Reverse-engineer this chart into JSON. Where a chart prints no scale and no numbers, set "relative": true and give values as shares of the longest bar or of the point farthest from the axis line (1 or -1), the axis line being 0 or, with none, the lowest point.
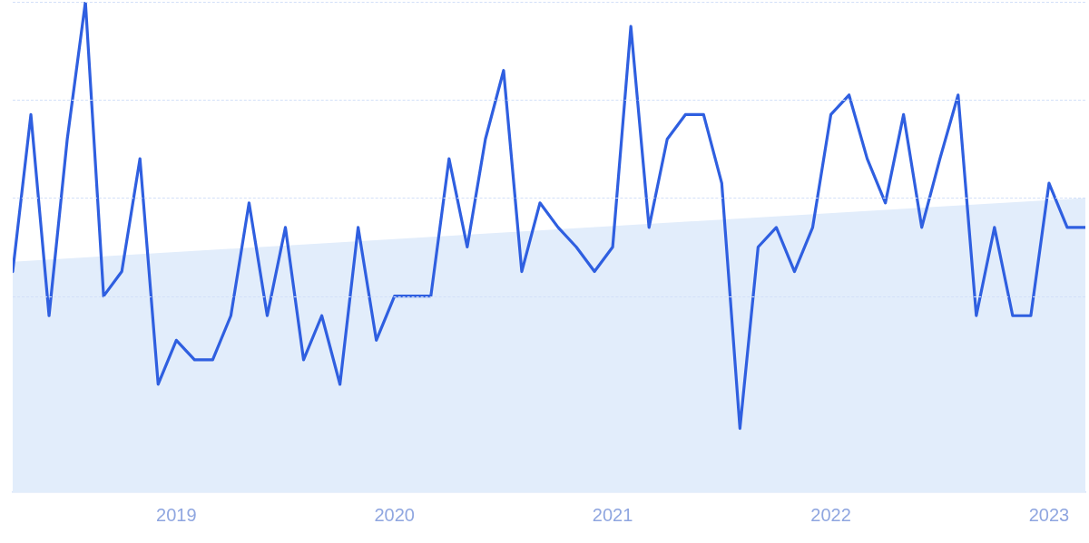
{
  "chart_data": {
    "type": "line",
    "relative": true,
    "legend": false,
    "marker": "none",
    "line_style": "solid",
    "x": [
      "2018-04",
      "2018-05",
      "2018-06",
      "2018-07",
      "2018-08",
      "2018-09",
      "2018-10",
      "2018-11",
      "2018-12",
      "2019-01",
      "2019-02",
      "2019-03",
      "2019-04",
      "2019-05",
      "2019-06",
      "2019-07",
      "2019-08",
      "2019-09",
      "2019-10",
      "2019-11",
      "2019-12",
      "2020-01",
      "2020-02",
      "2020-03",
      "2020-04",
      "2020-05",
      "2020-06",
      "2020-07",
      "2020-08",
      "2020-09",
      "2020-10",
      "2020-11",
      "2020-12",
      "2021-01",
      "2021-02",
      "2021-03",
      "2021-04",
      "2021-05",
      "2021-06",
      "2021-07",
      "2021-08",
      "2021-09",
      "2021-10",
      "2021-11",
      "2021-12",
      "2022-01",
      "2022-02",
      "2022-03",
      "2022-04",
      "2022-05",
      "2022-06",
      "2022-07",
      "2022-08",
      "2022-09",
      "2022-10",
      "2022-11",
      "2022-12",
      "2023-01",
      "2023-02",
      "2023-03"
    ],
    "xlim": [
      "2018-04",
      "2023-03"
    ],
    "xticks": [
      {
        "value": "2019-01",
        "label": "2019"
      },
      {
        "value": "2020-01",
        "label": "2020"
      },
      {
        "value": "2021-01",
        "label": "2021"
      },
      {
        "value": "2022-01",
        "label": "2022"
      },
      {
        "value": "2023-01",
        "label": "2023"
      }
    ],
    "series": [
      {
        "type": "area",
        "color": "#e2edfb",
        "x": [
          "2018-04",
          "2023-03"
        ],
        "values": [
          0.47,
          0.6
        ]
      },
      {
        "type": "line",
        "color": "#2f5fe0",
        "values": [
          0.45,
          0.77,
          0.36,
          0.72,
          1,
          0.4,
          0.45,
          0.68,
          0.22,
          0.31,
          0.27,
          0.27,
          0.36,
          0.59,
          0.36,
          0.54,
          0.27,
          0.36,
          0.22,
          0.54,
          0.31,
          0.4,
          0.4,
          0.4,
          0.68,
          0.5,
          0.72,
          0.86,
          0.45,
          0.59,
          0.54,
          0.5,
          0.45,
          0.5,
          0.95,
          0.54,
          0.72,
          0.77,
          0.77,
          0.63,
          0.13,
          0.5,
          0.54,
          0.45,
          0.54,
          0.77,
          0.81,
          0.68,
          0.59,
          0.77,
          0.54,
          0.68,
          0.81,
          0.36,
          0.54,
          0.36,
          0.36,
          0.63,
          0.54,
          0.54
        ]
      }
    ]
  }
}
